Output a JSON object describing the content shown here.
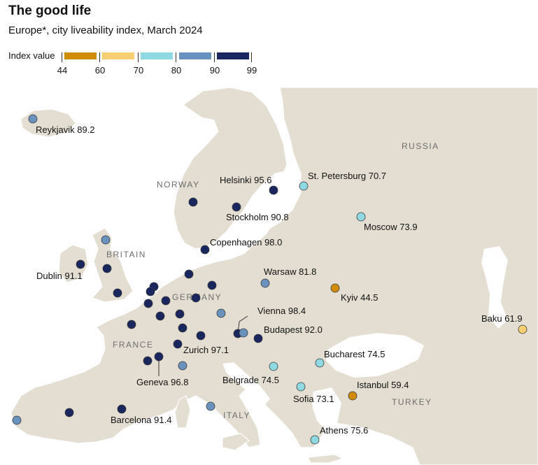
{
  "header": {
    "title": "The good life",
    "subtitle": "Europe*, city liveability index, March 2024"
  },
  "legend": {
    "title": "Index value",
    "ticks": [
      "44",
      "60",
      "70",
      "80",
      "90",
      "99"
    ],
    "bins": [
      {
        "from": 44,
        "to": 60,
        "color": "#d08c05"
      },
      {
        "from": 60,
        "to": 70,
        "color": "#f7cf72"
      },
      {
        "from": 70,
        "to": 80,
        "color": "#8fd9e2"
      },
      {
        "from": 80,
        "to": 90,
        "color": "#6a92be"
      },
      {
        "from": 90,
        "to": 99,
        "color": "#19275e"
      }
    ]
  },
  "countries": [
    "RUSSIA",
    "NORWAY",
    "BRITAIN",
    "GERMANY",
    "FRANCE",
    "ITALY",
    "TURKEY"
  ],
  "labeled_cities": [
    {
      "name": "Reykjavik",
      "value": 89.2
    },
    {
      "name": "Helsinki",
      "value": 95.6
    },
    {
      "name": "St. Petersburg",
      "value": 70.7
    },
    {
      "name": "Stockholm",
      "value": 90.8
    },
    {
      "name": "Moscow",
      "value": 73.9
    },
    {
      "name": "Copenhagen",
      "value": 98.0
    },
    {
      "name": "Dublin",
      "value": 91.1
    },
    {
      "name": "Warsaw",
      "value": 81.8
    },
    {
      "name": "Kyiv",
      "value": 44.5
    },
    {
      "name": "Vienna",
      "value": 98.4
    },
    {
      "name": "Baku",
      "value": 61.9
    },
    {
      "name": "Budapest",
      "value": 92.0
    },
    {
      "name": "Zurich",
      "value": 97.1
    },
    {
      "name": "Bucharest",
      "value": 74.5
    },
    {
      "name": "Geneva",
      "value": 96.8
    },
    {
      "name": "Belgrade",
      "value": 74.5
    },
    {
      "name": "Istanbul",
      "value": 59.4
    },
    {
      "name": "Sofia",
      "value": 73.1
    },
    {
      "name": "Barcelona",
      "value": 91.4
    },
    {
      "name": "Athens",
      "value": 75.6
    }
  ],
  "unlabeled_city_bins": {
    "blue": 6,
    "navy": 21
  }
}
